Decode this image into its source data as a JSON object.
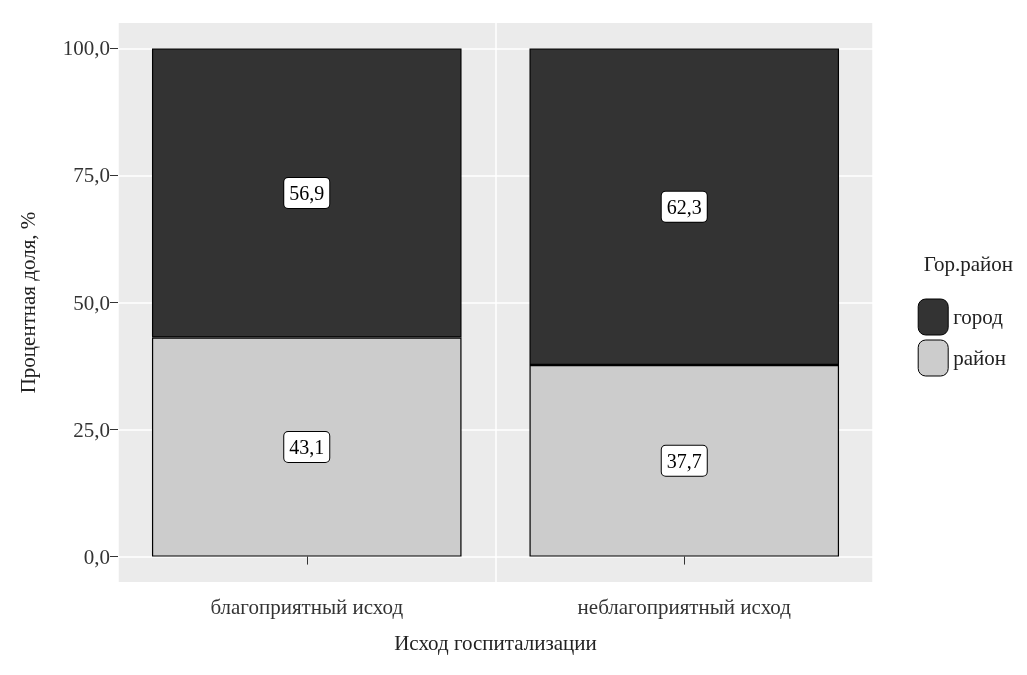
{
  "chart_data": {
    "type": "bar",
    "stacked": true,
    "xlabel": "Исход госпитализации",
    "ylabel": "Процентная доля, %",
    "legend_title": "Гор.район",
    "categories": [
      "благоприятный исход",
      "неблагоприятный исход"
    ],
    "series": [
      {
        "name": "район",
        "color": "#cccccc",
        "values": [
          43.1,
          37.7
        ],
        "value_labels": [
          "43,1",
          "37,7"
        ]
      },
      {
        "name": "город",
        "color": "#333333",
        "values": [
          56.9,
          62.3
        ],
        "value_labels": [
          "56,9",
          "62,3"
        ]
      }
    ],
    "ylim": [
      -5,
      105
    ],
    "yticks": [
      {
        "value": 0,
        "label": "0,0"
      },
      {
        "value": 25,
        "label": "25,0"
      },
      {
        "value": 50,
        "label": "50,0"
      },
      {
        "value": 75,
        "label": "75,0"
      },
      {
        "value": 100,
        "label": "100,0"
      }
    ],
    "grid": true,
    "legend": "right"
  }
}
